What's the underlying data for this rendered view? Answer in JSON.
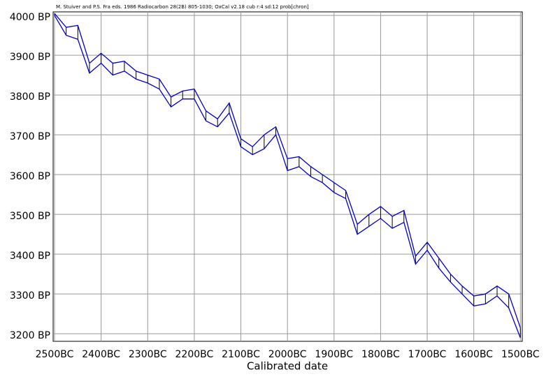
{
  "chart_data": {
    "type": "band",
    "title": "M. Stuiver and P.S. Fra eds. 1986 Radiocarbon 28(2B) 805-1030; OxCal v2.18 cub r:4 sd:12 prob[chron]",
    "x_label": "Calibrated date",
    "x": [
      2500,
      2475,
      2450,
      2425,
      2400,
      2375,
      2350,
      2325,
      2300,
      2275,
      2250,
      2225,
      2200,
      2175,
      2150,
      2125,
      2100,
      2075,
      2050,
      2025,
      2000,
      1975,
      1950,
      1925,
      1900,
      1875,
      1850,
      1825,
      1800,
      1775,
      1750,
      1725,
      1700,
      1675,
      1650,
      1625,
      1600,
      1575,
      1550,
      1525,
      1500
    ],
    "series": [
      {
        "name": "Upper",
        "color": "#0000cc",
        "values": [
          4005,
          3970,
          3975,
          3880,
          3905,
          3880,
          3885,
          3860,
          3850,
          3840,
          3795,
          3810,
          3815,
          3760,
          3740,
          3780,
          3690,
          3670,
          3700,
          3720,
          3640,
          3645,
          3620,
          3600,
          3580,
          3560,
          3475,
          3500,
          3520,
          3495,
          3510,
          3395,
          3430,
          3390,
          3350,
          3320,
          3295,
          3300,
          3320,
          3300,
          3215
        ]
      },
      {
        "name": "Lower",
        "color": "#0000cc",
        "values": [
          4000,
          3950,
          3940,
          3855,
          3880,
          3850,
          3860,
          3840,
          3830,
          3815,
          3770,
          3790,
          3790,
          3735,
          3720,
          3755,
          3670,
          3650,
          3665,
          3700,
          3610,
          3620,
          3595,
          3580,
          3555,
          3540,
          3450,
          3470,
          3490,
          3465,
          3480,
          3375,
          3410,
          3365,
          3330,
          3300,
          3270,
          3275,
          3295,
          3265,
          3190
        ]
      }
    ],
    "xlim": [
      2503,
      1496
    ],
    "ylim": [
      3181,
      4009
    ],
    "xticks": [
      {
        "value": 2500,
        "label": "2500BC"
      },
      {
        "value": 2400,
        "label": "2400BC"
      },
      {
        "value": 2300,
        "label": "2300BC"
      },
      {
        "value": 2200,
        "label": "2200BC"
      },
      {
        "value": 2100,
        "label": "2100BC"
      },
      {
        "value": 2000,
        "label": "2000BC"
      },
      {
        "value": 1900,
        "label": "1900BC"
      },
      {
        "value": 1800,
        "label": "1800BC"
      },
      {
        "value": 1700,
        "label": "1700BC"
      },
      {
        "value": 1600,
        "label": "1600BC"
      },
      {
        "value": 1500,
        "label": "1500BC"
      }
    ],
    "yticks": [
      {
        "value": 4000,
        "label": "4000 BP"
      },
      {
        "value": 3900,
        "label": "3900 BP"
      },
      {
        "value": 3800,
        "label": "3800 BP"
      },
      {
        "value": 3700,
        "label": "3700 BP"
      },
      {
        "value": 3600,
        "label": "3600 BP"
      },
      {
        "value": 3500,
        "label": "3500 BP"
      },
      {
        "value": 3400,
        "label": "3400 BP"
      },
      {
        "value": 3300,
        "label": "3300 BP"
      },
      {
        "value": 3200,
        "label": "3200 BP"
      }
    ],
    "grid": true
  }
}
